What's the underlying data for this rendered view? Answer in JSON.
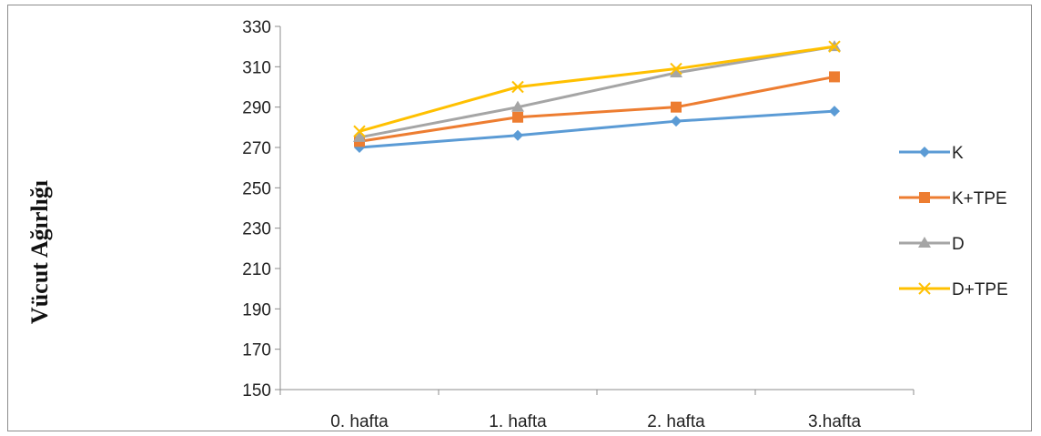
{
  "chart_data": {
    "type": "line",
    "title": "",
    "xlabel": "",
    "ylabel": "Vücut Ağırlığı",
    "categories": [
      "0. hafta",
      "1. hafta",
      "2. hafta",
      "3.hafta"
    ],
    "ylim": [
      150,
      330
    ],
    "yticks": [
      150,
      170,
      190,
      210,
      230,
      250,
      270,
      290,
      310,
      330
    ],
    "grid": false,
    "legend_position": "right",
    "series": [
      {
        "name": "K",
        "values": [
          270,
          276,
          283,
          288
        ],
        "color": "#5b9bd5",
        "marker": "diamond"
      },
      {
        "name": "K+TPE",
        "values": [
          273,
          285,
          290,
          305
        ],
        "color": "#ed7d31",
        "marker": "square"
      },
      {
        "name": "D",
        "values": [
          275,
          290,
          307,
          320
        ],
        "color": "#a5a5a5",
        "marker": "triangle"
      },
      {
        "name": "D+TPE",
        "values": [
          278,
          300,
          309,
          320
        ],
        "color": "#ffc000",
        "marker": "x"
      }
    ]
  }
}
